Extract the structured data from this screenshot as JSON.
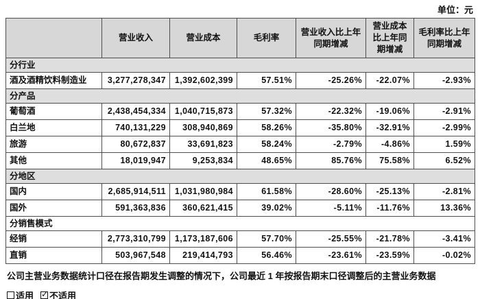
{
  "unit_label": "单位：元",
  "table": {
    "columns": [
      "",
      "营业收入",
      "营业成本",
      "毛利率",
      "营业收入比上年同期增减",
      "营业成本比上年同期增减",
      "毛利率比上年同期增减"
    ],
    "sections": [
      {
        "header": "分行业",
        "shaded": true,
        "rows": [
          [
            "酒及酒精饮料制造业",
            "3,277,278,347",
            "1,392,602,399",
            "57.51%",
            "-25.26%",
            "-22.07%",
            "-2.93%"
          ]
        ]
      },
      {
        "header": "分产品",
        "shaded": true,
        "rows": [
          [
            "葡萄酒",
            "2,438,454,334",
            "1,040,715,873",
            "57.32%",
            "-22.32%",
            "-19.06%",
            "-2.91%"
          ],
          [
            "白兰地",
            "740,131,229",
            "308,940,869",
            "58.26%",
            "-35.80%",
            "-32.91%",
            "-2.99%"
          ],
          [
            "旅游",
            "80,672,837",
            "33,691,823",
            "58.24%",
            "-2.79%",
            "-4.86%",
            "1.59%"
          ],
          [
            "其他",
            "18,019,947",
            "9,253,834",
            "48.65%",
            "85.76%",
            "75.58%",
            "6.52%"
          ]
        ]
      },
      {
        "header": "分地区",
        "shaded": true,
        "rows": [
          [
            "国内",
            "2,685,914,511",
            "1,031,980,984",
            "61.58%",
            "-28.60%",
            "-25.13%",
            "-2.81%"
          ],
          [
            "国外",
            "591,363,836",
            "360,621,415",
            "39.02%",
            "-5.11%",
            "-11.76%",
            "13.36%"
          ]
        ]
      },
      {
        "header": "分销售模式",
        "shaded": false,
        "rows": [
          [
            "经销",
            "2,773,310,799",
            "1,173,187,606",
            "57.70%",
            "-25.55%",
            "-21.78%",
            "-3.41%"
          ],
          [
            "直销",
            "503,967,548",
            "219,414,793",
            "56.46%",
            "-23.61%",
            "-23.59%",
            "-0.02%"
          ]
        ]
      }
    ]
  },
  "footnote": "公司主营业务数据统计口径在报告期发生调整的情况下，公司最近 1 年按报告期末口径调整后的主营业务数据",
  "applicability": {
    "applicable_label": "适用",
    "applicable_checked": false,
    "not_applicable_label": "不适用",
    "not_applicable_checked": true,
    "check_glyph": "✓"
  },
  "colors": {
    "header_bg": "#d7d7d7",
    "section_bg": "#dedede",
    "border": "#4d4d4d",
    "text": "#111111"
  }
}
